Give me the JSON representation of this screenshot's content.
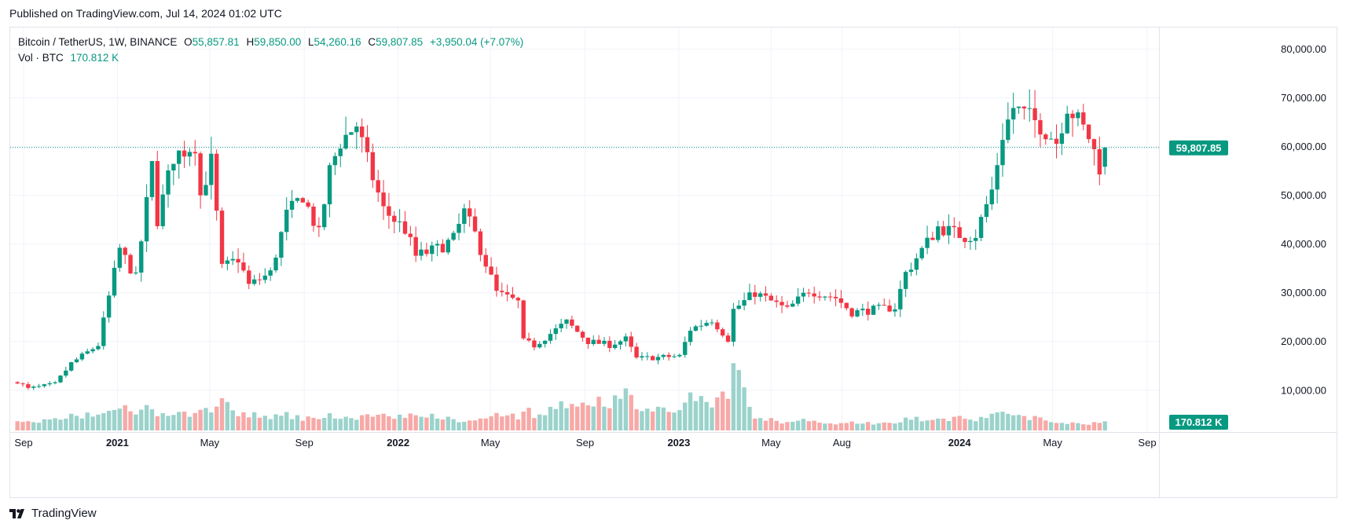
{
  "header": {
    "published": "Published on TradingView.com, Jul 14, 2024 01:02 UTC"
  },
  "legend": {
    "symbol": "Bitcoin / TetherUS, 1W, BINANCE",
    "o_label": "O",
    "o_value": "55,857.81",
    "h_label": "H",
    "h_value": "59,850.00",
    "l_label": "L",
    "l_value": "54,260.16",
    "c_label": "C",
    "c_value": "59,807.85",
    "change": "+3,950.04 (+7.07%)",
    "vol_label": "Vol · BTC",
    "vol_value": "170.812 K"
  },
  "footer": {
    "brand": "TradingView",
    "logo_icon": "tradingview-logo-icon"
  },
  "colors": {
    "up": "#089981",
    "down": "#f23645",
    "vol_up": "#9bd3cc",
    "vol_down": "#f7a9a7",
    "grid": "#f0f3fa",
    "axis_text": "#131722"
  },
  "chart_data": {
    "type": "candlestick",
    "title": "",
    "y_axis": {
      "ticks": [
        10000,
        20000,
        30000,
        40000,
        50000,
        60000,
        70000,
        80000
      ],
      "tick_labels": [
        "10,000.00",
        "20,000.00",
        "30,000.00",
        "40,000.00",
        "50,000.00",
        "60,000.00",
        "70,000.00",
        "80,000.00"
      ],
      "range": [
        4000,
        82500
      ],
      "last_price": 59807.85,
      "last_price_label": "59,807.85",
      "last_volume_label": "170.812 K"
    },
    "x_axis": {
      "labels": [
        "Sep",
        "2021",
        "May",
        "Sep",
        "2022",
        "May",
        "Sep",
        "2023",
        "May",
        "Aug",
        "2024",
        "May",
        "Sep"
      ],
      "bold": [
        false,
        true,
        false,
        false,
        true,
        false,
        false,
        true,
        false,
        false,
        true,
        false,
        false
      ],
      "dates": [
        "2020-09-01",
        "2021-01-01",
        "2021-05-01",
        "2021-09-01",
        "2022-01-01",
        "2022-05-01",
        "2022-09-01",
        "2023-01-01",
        "2023-05-01",
        "2023-08-01",
        "2024-01-01",
        "2024-05-01",
        "2024-09-01"
      ]
    },
    "anchors": [
      [
        "2020-08-24",
        11800,
        30
      ],
      [
        "2020-09-07",
        10300,
        35
      ],
      [
        "2020-10-12",
        11300,
        40
      ],
      [
        "2020-11-02",
        15500,
        55
      ],
      [
        "2020-12-07",
        19300,
        60
      ],
      [
        "2021-01-04",
        39000,
        90
      ],
      [
        "2021-01-25",
        33000,
        70
      ],
      [
        "2021-02-15",
        56000,
        90
      ],
      [
        "2021-02-22",
        45000,
        70
      ],
      [
        "2021-03-15",
        58000,
        60
      ],
      [
        "2021-04-12",
        60500,
        60
      ],
      [
        "2021-04-19",
        50000,
        100
      ],
      [
        "2021-05-03",
        57000,
        60
      ],
      [
        "2021-05-17",
        35000,
        130
      ],
      [
        "2021-06-07",
        37000,
        60
      ],
      [
        "2021-06-21",
        31500,
        60
      ],
      [
        "2021-07-19",
        34000,
        55
      ],
      [
        "2021-08-09",
        46000,
        60
      ],
      [
        "2021-08-30",
        50000,
        45
      ],
      [
        "2021-09-20",
        42000,
        45
      ],
      [
        "2021-10-04",
        55000,
        55
      ],
      [
        "2021-10-18",
        61000,
        55
      ],
      [
        "2021-11-08",
        64500,
        50
      ],
      [
        "2021-11-22",
        57000,
        55
      ],
      [
        "2021-12-13",
        47000,
        55
      ],
      [
        "2022-01-10",
        43000,
        55
      ],
      [
        "2022-01-24",
        37500,
        60
      ],
      [
        "2022-02-21",
        39000,
        55
      ],
      [
        "2022-03-14",
        41000,
        40
      ],
      [
        "2022-03-28",
        46500,
        40
      ],
      [
        "2022-04-11",
        42000,
        35
      ],
      [
        "2022-05-09",
        30000,
        70
      ],
      [
        "2022-06-06",
        28000,
        50
      ],
      [
        "2022-06-13",
        20000,
        90
      ],
      [
        "2022-06-27",
        19200,
        60
      ],
      [
        "2022-08-08",
        24000,
        100
      ],
      [
        "2022-09-05",
        20000,
        120
      ],
      [
        "2022-10-03",
        19300,
        100
      ],
      [
        "2022-10-24",
        20500,
        150
      ],
      [
        "2022-11-07",
        16500,
        90
      ],
      [
        "2023-01-02",
        17000,
        70
      ],
      [
        "2023-01-16",
        22500,
        140
      ],
      [
        "2023-02-13",
        24500,
        110
      ],
      [
        "2023-03-06",
        20500,
        140
      ],
      [
        "2023-03-13",
        26500,
        250
      ],
      [
        "2023-04-10",
        30000,
        50
      ],
      [
        "2023-05-22",
        26500,
        30
      ],
      [
        "2023-06-19",
        30500,
        40
      ],
      [
        "2023-07-24",
        29000,
        22
      ],
      [
        "2023-08-14",
        26000,
        30
      ],
      [
        "2023-09-11",
        26500,
        28
      ],
      [
        "2023-10-09",
        27000,
        28
      ],
      [
        "2023-10-23",
        34000,
        45
      ],
      [
        "2023-12-04",
        43500,
        40
      ],
      [
        "2024-01-08",
        41500,
        55
      ],
      [
        "2024-01-22",
        42000,
        40
      ],
      [
        "2024-02-12",
        51000,
        55
      ],
      [
        "2024-02-26",
        62500,
        60
      ],
      [
        "2024-03-11",
        68000,
        60
      ],
      [
        "2024-04-15",
        64500,
        45
      ],
      [
        "2024-05-06",
        61000,
        30
      ],
      [
        "2024-05-20",
        68500,
        30
      ],
      [
        "2024-06-17",
        62000,
        25
      ],
      [
        "2024-07-01",
        55900,
        35
      ],
      [
        "2024-07-08",
        59807.85,
        36
      ]
    ]
  }
}
